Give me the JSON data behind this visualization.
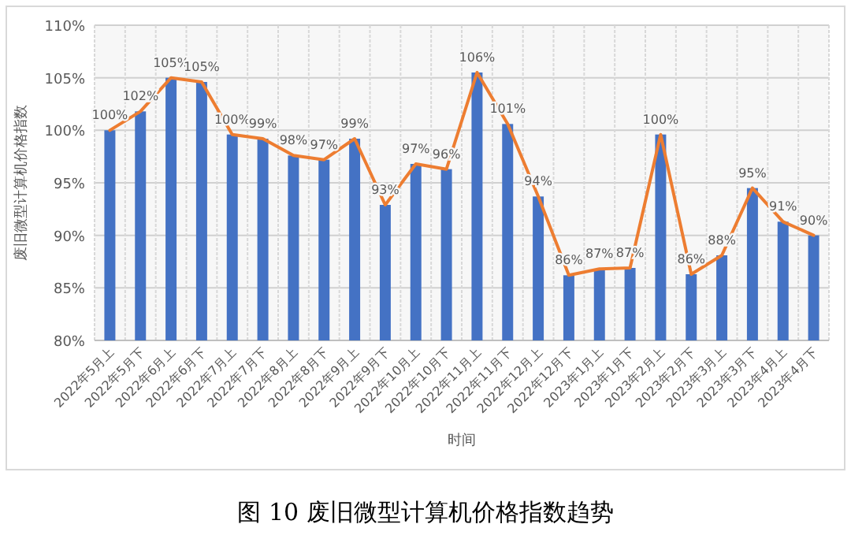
{
  "chart_data": {
    "type": "bar",
    "title": "图 10 废旧微型计算机价格指数趋势",
    "xlabel": "时间",
    "ylabel": "废旧微型计算机价格指数",
    "categories": [
      "2022年5月上",
      "2022年5月下",
      "2022年6月上",
      "2022年6月下",
      "2022年7月上",
      "2022年7月下",
      "2022年8月上",
      "2022年8月下",
      "2022年9月上",
      "2022年9月下",
      "2022年10月上",
      "2022年10月下",
      "2022年11月上",
      "2022年11月下",
      "2022年12月上",
      "2022年12月下",
      "2023年1月上",
      "2023年1月下",
      "2023年2月上",
      "2023年2月下",
      "2023年3月上",
      "2023年3月下",
      "2023年4月上",
      "2023年4月下"
    ],
    "series": [
      {
        "color": "#4472c4",
        "values": [
          100,
          101.8,
          105,
          104.6,
          99.6,
          99.2,
          97.6,
          97.2,
          99.2,
          92.9,
          96.8,
          96.3,
          105.5,
          100.6,
          93.7,
          86.2,
          86.8,
          86.9,
          99.6,
          86.3,
          88.1,
          94.5,
          91.3,
          90
        ],
        "value_labels": [
          "100%",
          "102%",
          "105%",
          "105%",
          "100%",
          "99%",
          "98%",
          "97%",
          "99%",
          "93%",
          "97%",
          "96%",
          "106%",
          "101%",
          "94%",
          "86%",
          "87%",
          "87%",
          "100%",
          "86%",
          "88%",
          "95%",
          "91%",
          "90%"
        ]
      },
      {
        "type": "line",
        "color": "#ed7d31",
        "values": [
          100,
          101.8,
          105,
          104.6,
          99.6,
          99.2,
          97.6,
          97.2,
          99.2,
          92.9,
          96.8,
          96.3,
          105.5,
          100.6,
          93.7,
          86.2,
          86.8,
          86.9,
          99.6,
          86.3,
          88.1,
          94.5,
          91.3,
          90
        ]
      }
    ],
    "ylim": [
      80,
      110
    ],
    "yticks": [
      {
        "value": 80,
        "label": "80%"
      },
      {
        "value": 85,
        "label": "85%"
      },
      {
        "value": 90,
        "label": "90%"
      },
      {
        "value": 95,
        "label": "95%"
      },
      {
        "value": 100,
        "label": "100%"
      },
      {
        "value": 105,
        "label": "105%"
      },
      {
        "value": 110,
        "label": "110%"
      }
    ],
    "grid": true
  }
}
